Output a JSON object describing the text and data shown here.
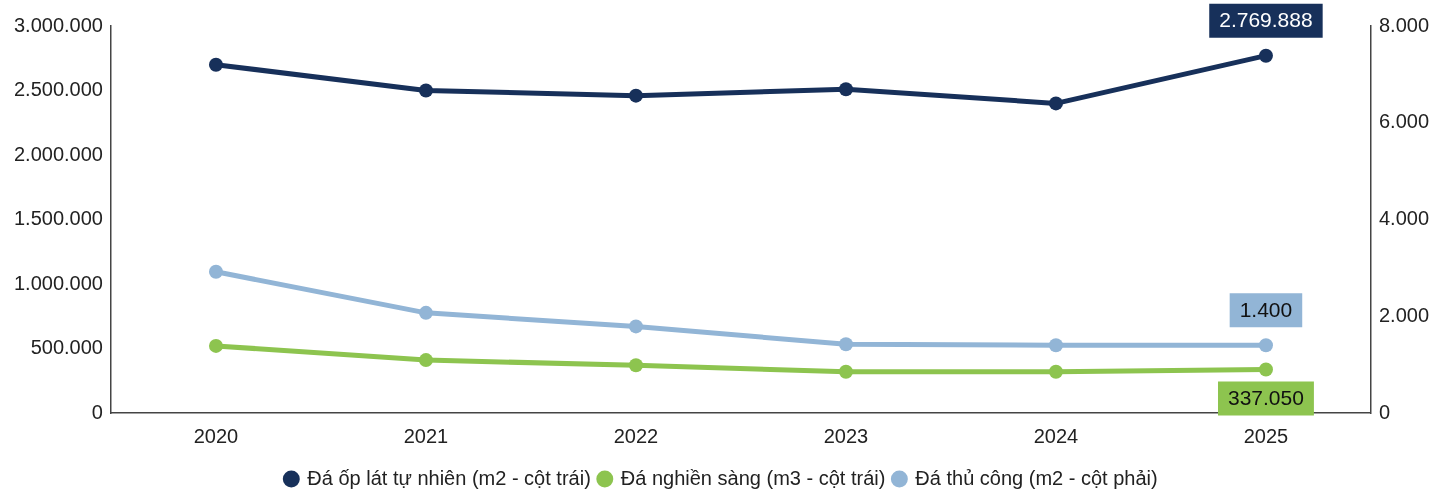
{
  "chart_data": {
    "type": "line",
    "categories": [
      "2020",
      "2021",
      "2022",
      "2023",
      "2024",
      "2025"
    ],
    "series": [
      {
        "name": "Đá ốp lát tự nhiên (m2 - cột trái)",
        "color": "#17305a",
        "values": [
          2700000,
          2500000,
          2460000,
          2510000,
          2400000,
          2769888
        ],
        "value_labels": [
          null,
          null,
          null,
          null,
          null,
          "2.769.888"
        ]
      },
      {
        "name": "Đá nghiền sàng (m3 - cột trái)",
        "color": "#8dc44f",
        "values": [
          520000,
          410000,
          370000,
          320000,
          320000,
          337050
        ],
        "value_labels": [
          null,
          null,
          null,
          null,
          null,
          "337.050"
        ]
      },
      {
        "name": "Đá thủ công (m2 - cột phải)",
        "color": "#92b5d6",
        "axis": "y2",
        "values": [
          2920,
          2070,
          1790,
          1420,
          1400,
          1400
        ],
        "value_labels": [
          null,
          null,
          null,
          null,
          null,
          "1.400"
        ]
      }
    ],
    "ylim": [
      0,
      3000000
    ],
    "yticks": [
      {
        "value": 0,
        "label": "0"
      },
      {
        "value": 500000,
        "label": "500.000"
      },
      {
        "value": 1000000,
        "label": "1.000.000"
      },
      {
        "value": 1500000,
        "label": "1.500.000"
      },
      {
        "value": 2000000,
        "label": "2.000.000"
      },
      {
        "value": 2500000,
        "label": "2.500.000"
      },
      {
        "value": 3000000,
        "label": "3.000.000"
      }
    ],
    "y2lim": [
      0,
      8000
    ],
    "y2ticks": [
      {
        "value": 0,
        "label": "0"
      },
      {
        "value": 2000,
        "label": "2.000"
      },
      {
        "value": 4000,
        "label": "4.000"
      },
      {
        "value": 6000,
        "label": "6.000"
      },
      {
        "value": 8000,
        "label": "8.000"
      }
    ],
    "grid": false,
    "legend": "bottom",
    "marker": "circle",
    "line_style": "solid"
  }
}
